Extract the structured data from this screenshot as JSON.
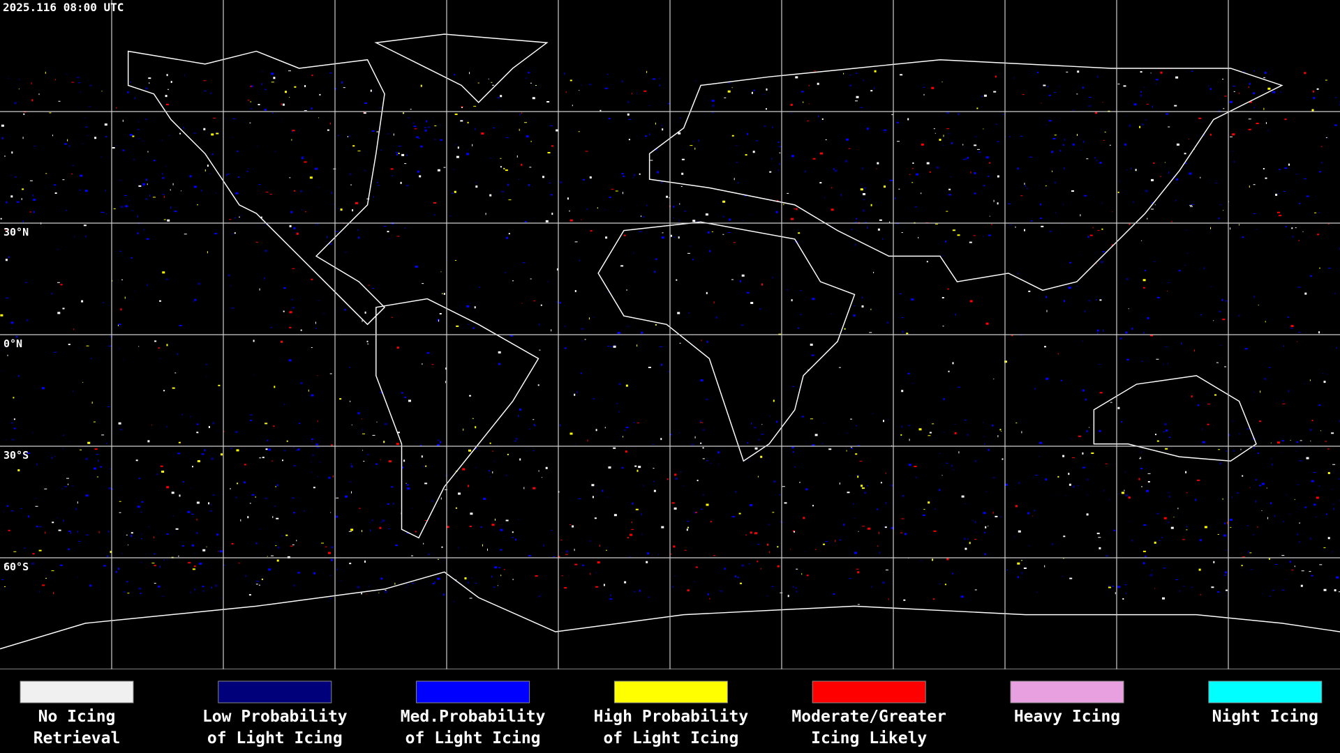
{
  "header": {
    "timestamp": "2025.116 08:00 UTC"
  },
  "map": {
    "latitude_labels": [
      "30°N",
      "0°N",
      "30°S",
      "60°S"
    ]
  },
  "legend": {
    "items": [
      {
        "lines": [
          "No Icing",
          "Retrieval"
        ],
        "color": "#f0f0f0"
      },
      {
        "lines": [
          "Low Probability",
          "of Light Icing"
        ],
        "color": "#00007a"
      },
      {
        "lines": [
          "Med.Probability",
          "of Light Icing"
        ],
        "color": "#0000ff"
      },
      {
        "lines": [
          "High Probability",
          "of Light Icing"
        ],
        "color": "#ffff00"
      },
      {
        "lines": [
          "Moderate/Greater",
          "Icing Likely"
        ],
        "color": "#ff0000"
      },
      {
        "lines": [
          "Heavy Icing"
        ],
        "color": "#e8a0e0"
      },
      {
        "lines": [
          "Night Icing"
        ],
        "color": "#00ffff"
      }
    ]
  }
}
